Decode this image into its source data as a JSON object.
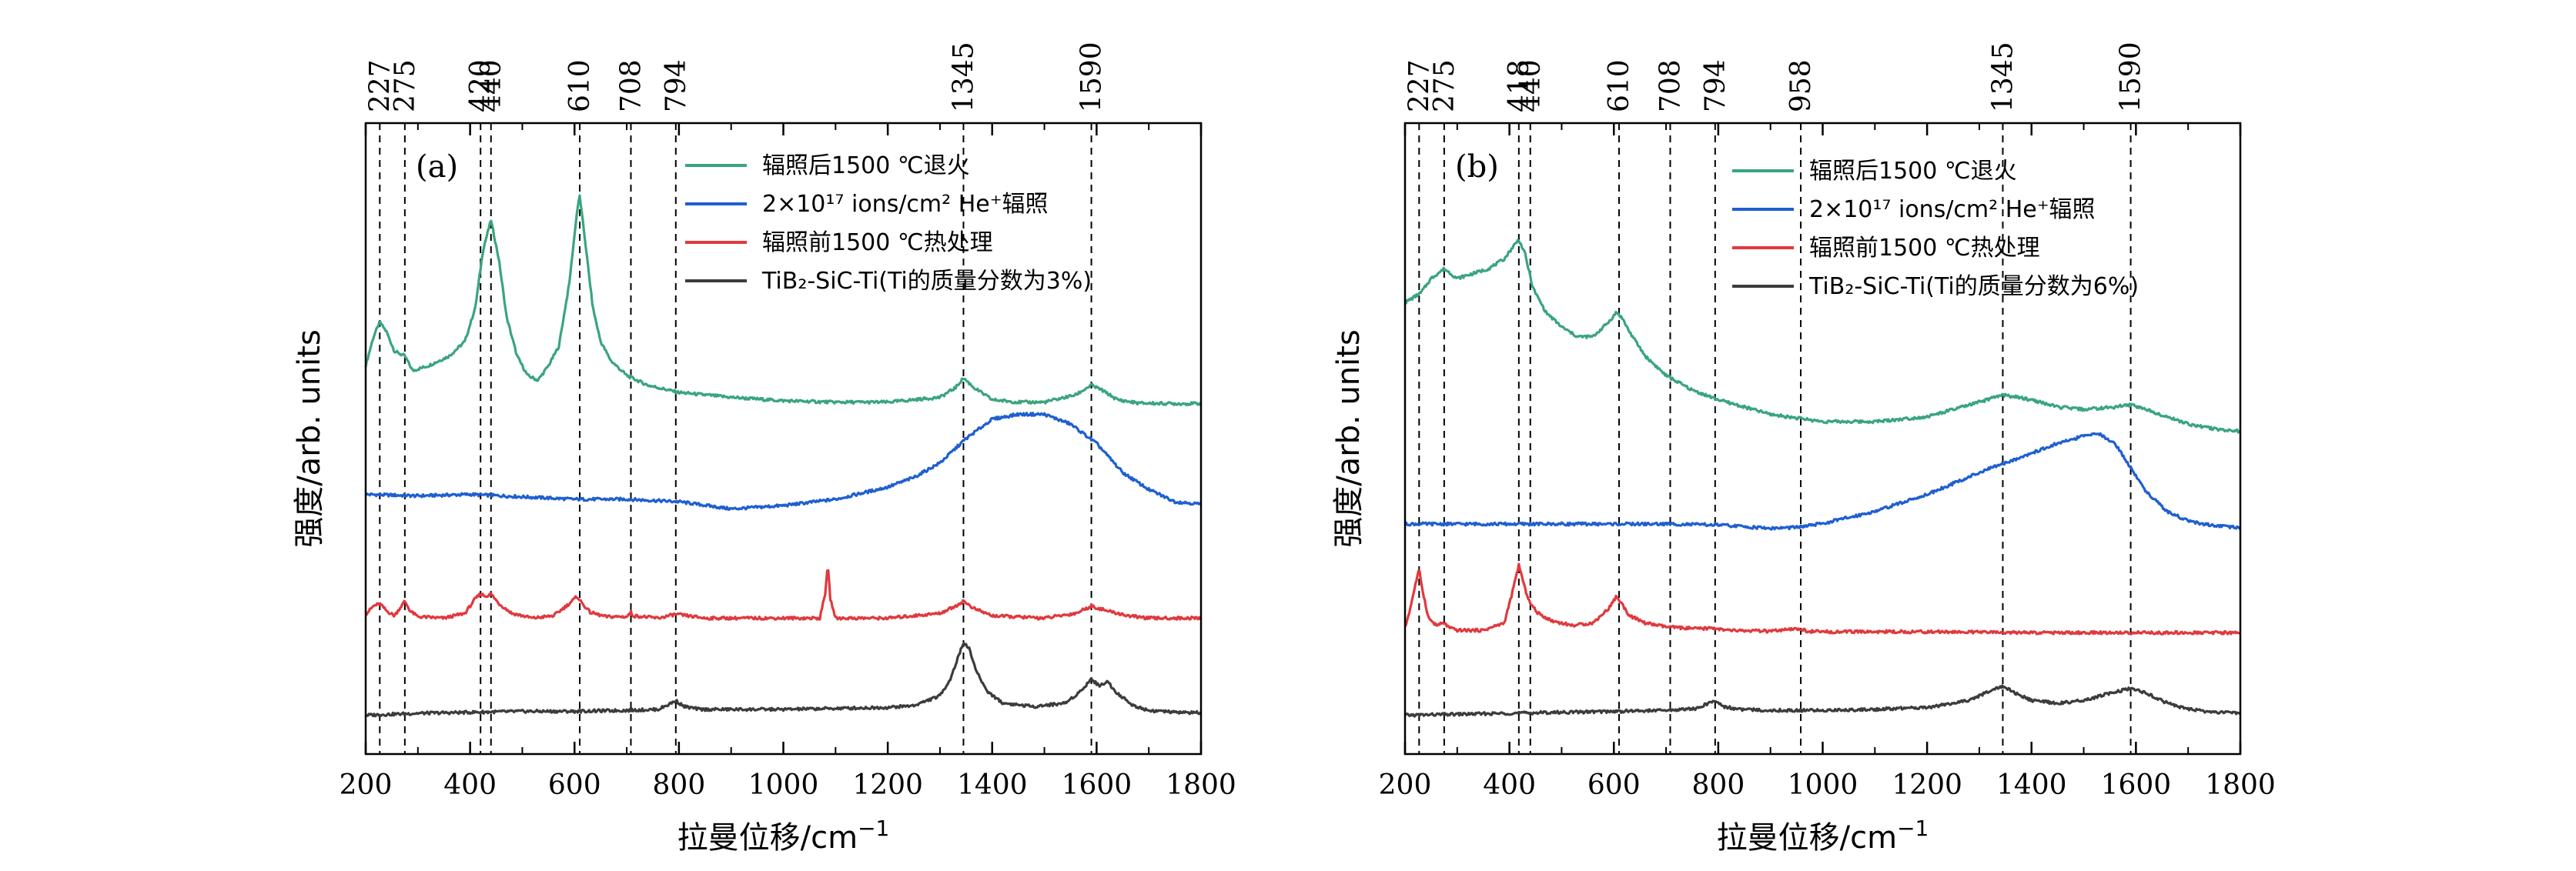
{
  "chart_data": [
    {
      "type": "line",
      "panel_label": "(a)",
      "xlabel": "拉曼位移/cm",
      "xlabel_sup": "−1",
      "ylabel": "强度/arb. units",
      "xlim": [
        200,
        1800
      ],
      "x_ticks": [
        200,
        400,
        600,
        800,
        1000,
        1200,
        1400,
        1600,
        1800
      ],
      "y_tick_labels": false,
      "legend_position": "top-right",
      "peak_markers": [
        227,
        275,
        420,
        440,
        610,
        708,
        794,
        1345,
        1590
      ],
      "series": [
        {
          "name": "辐照后1500 ℃退火",
          "color": "#3aa57d",
          "offset": 0.64,
          "x": [
            200,
            215,
            227,
            240,
            255,
            275,
            290,
            320,
            360,
            390,
            410,
            425,
            440,
            455,
            470,
            490,
            510,
            530,
            550,
            570,
            590,
            605,
            610,
            620,
            635,
            650,
            670,
            700,
            740,
            800,
            900,
            1000,
            1100,
            1200,
            1300,
            1330,
            1345,
            1365,
            1400,
            1450,
            1500,
            1560,
            1590,
            1610,
            1640,
            1680,
            1750,
            1800
          ],
          "y": [
            0.08,
            0.14,
            0.17,
            0.15,
            0.11,
            0.1,
            0.07,
            0.08,
            0.1,
            0.13,
            0.2,
            0.32,
            0.38,
            0.3,
            0.18,
            0.1,
            0.06,
            0.05,
            0.08,
            0.12,
            0.25,
            0.4,
            0.43,
            0.34,
            0.2,
            0.13,
            0.09,
            0.06,
            0.04,
            0.025,
            0.015,
            0.008,
            0.005,
            0.005,
            0.015,
            0.035,
            0.055,
            0.035,
            0.01,
            0.005,
            0.005,
            0.02,
            0.04,
            0.03,
            0.01,
            0.003,
            0.002,
            0.002
          ]
        },
        {
          "name": "2×10¹⁷ ions/cm² He⁺辐照",
          "color": "#1f5fd0",
          "offset": 0.44,
          "x": [
            200,
            300,
            400,
            500,
            600,
            700,
            800,
            900,
            1000,
            1100,
            1200,
            1250,
            1300,
            1350,
            1400,
            1450,
            1500,
            1550,
            1600,
            1650,
            1700,
            1750,
            1800
          ],
          "y": [
            0.015,
            0.012,
            0.015,
            0.01,
            0.005,
            0.005,
            0.0,
            -0.015,
            -0.008,
            0.005,
            0.03,
            0.05,
            0.08,
            0.13,
            0.17,
            0.18,
            0.18,
            0.16,
            0.12,
            0.06,
            0.025,
            0.0,
            -0.005
          ]
        },
        {
          "name": "辐照前1500 ℃热处理",
          "color": "#e0393e",
          "offset": 0.2,
          "x": [
            200,
            215,
            227,
            240,
            255,
            265,
            275,
            285,
            300,
            350,
            390,
            410,
            420,
            430,
            440,
            455,
            480,
            520,
            560,
            590,
            605,
            615,
            630,
            660,
            700,
            705,
            708,
            712,
            760,
            794,
            850,
            1000,
            1070,
            1080,
            1085,
            1090,
            1100,
            1200,
            1300,
            1330,
            1345,
            1365,
            1400,
            1500,
            1560,
            1590,
            1620,
            1660,
            1700,
            1800
          ],
          "y": [
            0.008,
            0.025,
            0.03,
            0.015,
            0.005,
            0.02,
            0.035,
            0.015,
            0.003,
            0.0,
            0.01,
            0.04,
            0.05,
            0.045,
            0.05,
            0.03,
            0.01,
            0.0,
            0.005,
            0.03,
            0.045,
            0.03,
            0.012,
            0.003,
            0.003,
            0.008,
            0.012,
            0.005,
            0.0,
            0.008,
            0.0,
            0.0,
            0.0,
            0.05,
            0.11,
            0.04,
            0.0,
            0.0,
            0.01,
            0.025,
            0.035,
            0.02,
            0.005,
            0.0,
            0.01,
            0.025,
            0.015,
            0.005,
            0.0,
            0.0
          ]
        },
        {
          "name": "TiB₂-SiC-Ti(Ti的质量分数为3%)",
          "color": "#3c3c3c",
          "offset": 0.0,
          "x": [
            200,
            300,
            400,
            500,
            600,
            700,
            760,
            780,
            794,
            810,
            840,
            900,
            1000,
            1100,
            1200,
            1250,
            1300,
            1320,
            1335,
            1345,
            1355,
            1370,
            1390,
            1420,
            1480,
            1540,
            1570,
            1590,
            1605,
            1620,
            1640,
            1670,
            1700,
            1750,
            1800
          ],
          "y": [
            0.0,
            0.004,
            0.006,
            0.008,
            0.008,
            0.01,
            0.012,
            0.022,
            0.03,
            0.018,
            0.012,
            0.012,
            0.012,
            0.014,
            0.016,
            0.02,
            0.04,
            0.075,
            0.12,
            0.15,
            0.14,
            0.09,
            0.05,
            0.025,
            0.018,
            0.025,
            0.05,
            0.075,
            0.06,
            0.07,
            0.045,
            0.02,
            0.01,
            0.006,
            0.005
          ]
        }
      ]
    },
    {
      "type": "line",
      "panel_label": "(b)",
      "xlabel": "拉曼位移/cm",
      "xlabel_sup": "−1",
      "ylabel": "强度/arb. units",
      "xlim": [
        200,
        1800
      ],
      "x_ticks": [
        200,
        400,
        600,
        800,
        1000,
        1200,
        1400,
        1600,
        1800
      ],
      "y_tick_labels": false,
      "legend_position": "top-right",
      "peak_markers": [
        227,
        275,
        418,
        440,
        610,
        708,
        794,
        958,
        1345,
        1590
      ],
      "series": [
        {
          "name": "辐照后1500 ℃退火",
          "color": "#3aa57d",
          "offset": 0.58,
          "x": [
            200,
            230,
            250,
            275,
            300,
            330,
            360,
            390,
            410,
            418,
            430,
            445,
            470,
            500,
            530,
            560,
            590,
            605,
            615,
            630,
            660,
            700,
            750,
            800,
            900,
            1000,
            1100,
            1200,
            1300,
            1345,
            1400,
            1450,
            1500,
            1560,
            1590,
            1620,
            1660,
            1700,
            1750,
            1800
          ],
          "y": [
            0.27,
            0.29,
            0.32,
            0.34,
            0.32,
            0.33,
            0.34,
            0.36,
            0.39,
            0.4,
            0.37,
            0.3,
            0.25,
            0.22,
            0.2,
            0.2,
            0.23,
            0.25,
            0.24,
            0.21,
            0.16,
            0.12,
            0.09,
            0.07,
            0.04,
            0.025,
            0.025,
            0.035,
            0.065,
            0.08,
            0.07,
            0.055,
            0.05,
            0.055,
            0.06,
            0.05,
            0.035,
            0.02,
            0.01,
            0.005
          ]
        },
        {
          "name": "2×10¹⁷ ions/cm² He⁺辐照",
          "color": "#1f5fd0",
          "offset": 0.39,
          "x": [
            200,
            300,
            400,
            500,
            600,
            700,
            800,
            900,
            950,
            1000,
            1100,
            1200,
            1300,
            1350,
            1400,
            1450,
            1500,
            1530,
            1560,
            1590,
            1620,
            1660,
            1700,
            1750,
            1800
          ],
          "y": [
            0.004,
            0.004,
            0.004,
            0.004,
            0.004,
            0.004,
            0.002,
            -0.005,
            -0.003,
            0.005,
            0.03,
            0.065,
            0.11,
            0.13,
            0.15,
            0.17,
            0.185,
            0.19,
            0.17,
            0.12,
            0.07,
            0.03,
            0.01,
            0.0,
            -0.004
          ]
        },
        {
          "name": "辐照前1500 ℃热处理",
          "color": "#e0393e",
          "offset": 0.17,
          "x": [
            200,
            210,
            220,
            227,
            235,
            245,
            260,
            275,
            285,
            300,
            350,
            390,
            405,
            418,
            430,
            440,
            455,
            480,
            520,
            560,
            590,
            605,
            615,
            630,
            660,
            700,
            760,
            794,
            810,
            900,
            958,
            970,
            1000,
            1200,
            1400,
            1600,
            1800
          ],
          "y": [
            0.01,
            0.05,
            0.1,
            0.13,
            0.08,
            0.03,
            0.015,
            0.02,
            0.01,
            0.005,
            0.005,
            0.02,
            0.08,
            0.14,
            0.09,
            0.06,
            0.04,
            0.025,
            0.015,
            0.02,
            0.05,
            0.075,
            0.06,
            0.035,
            0.02,
            0.012,
            0.008,
            0.01,
            0.005,
            0.003,
            0.008,
            0.003,
            0.002,
            0.002,
            0.0,
            0.0,
            0.0
          ]
        },
        {
          "name": "TiB₂-SiC-Ti(Ti的质量分数为6%)",
          "color": "#3c3c3c",
          "offset": 0.0,
          "x": [
            200,
            300,
            400,
            500,
            600,
            700,
            760,
            780,
            794,
            810,
            840,
            900,
            1000,
            1100,
            1200,
            1280,
            1320,
            1345,
            1370,
            1400,
            1450,
            1500,
            1550,
            1590,
            1620,
            1660,
            1700,
            1750,
            1800
          ],
          "y": [
            0.0,
            0.002,
            0.004,
            0.006,
            0.008,
            0.01,
            0.014,
            0.024,
            0.03,
            0.018,
            0.012,
            0.01,
            0.01,
            0.012,
            0.016,
            0.03,
            0.05,
            0.06,
            0.045,
            0.03,
            0.025,
            0.03,
            0.045,
            0.055,
            0.045,
            0.025,
            0.012,
            0.006,
            0.005
          ]
        }
      ]
    }
  ]
}
